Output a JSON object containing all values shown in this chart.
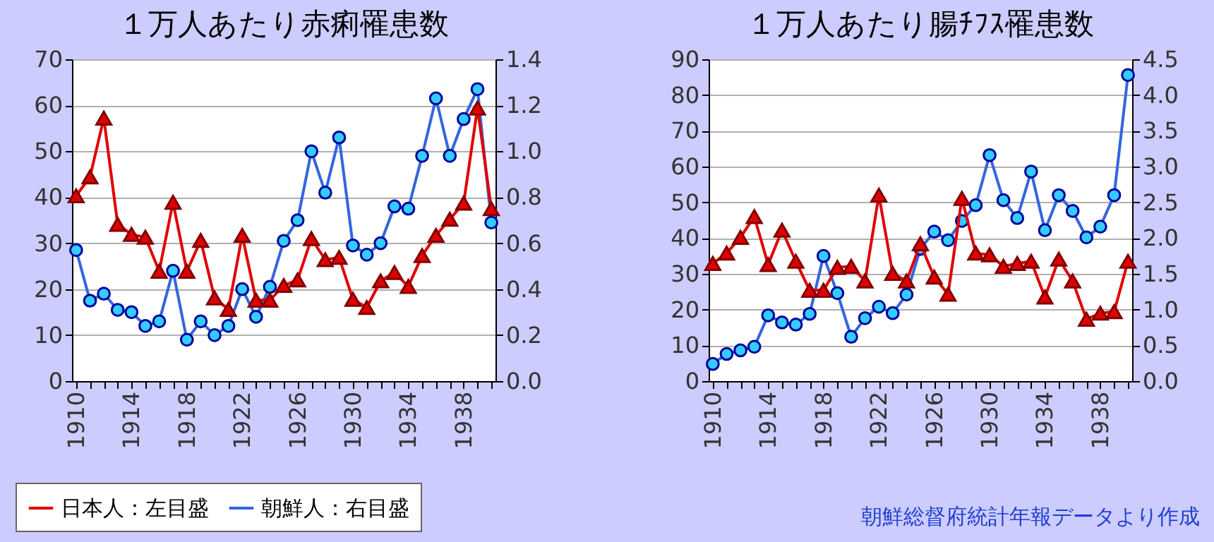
{
  "chart_data": [
    {
      "type": "line",
      "title": "１万人あたり赤痢罹患数",
      "x": [
        1910,
        1911,
        1912,
        1913,
        1914,
        1915,
        1916,
        1917,
        1918,
        1919,
        1920,
        1921,
        1922,
        1923,
        1924,
        1925,
        1926,
        1927,
        1928,
        1929,
        1930,
        1931,
        1932,
        1933,
        1934,
        1935,
        1936,
        1937,
        1938,
        1939,
        1940
      ],
      "xlim": [
        1909.7,
        1940.3
      ],
      "xticks": [
        1910,
        {
          "value": 1911,
          "label": null
        },
        {
          "value": 1912,
          "label": null
        },
        {
          "value": 1913,
          "label": null
        },
        1914,
        {
          "value": 1915,
          "label": null
        },
        {
          "value": 1916,
          "label": null
        },
        {
          "value": 1917,
          "label": null
        },
        1918,
        {
          "value": 1919,
          "label": null
        },
        {
          "value": 1920,
          "label": null
        },
        {
          "value": 1921,
          "label": null
        },
        1922,
        {
          "value": 1923,
          "label": null
        },
        {
          "value": 1924,
          "label": null
        },
        {
          "value": 1925,
          "label": null
        },
        1926,
        {
          "value": 1927,
          "label": null
        },
        {
          "value": 1928,
          "label": null
        },
        {
          "value": 1929,
          "label": null
        },
        1930,
        {
          "value": 1931,
          "label": null
        },
        {
          "value": 1932,
          "label": null
        },
        {
          "value": 1933,
          "label": null
        },
        1934,
        {
          "value": 1935,
          "label": null
        },
        {
          "value": 1936,
          "label": null
        },
        {
          "value": 1937,
          "label": null
        },
        1938,
        {
          "value": 1939,
          "label": null
        },
        {
          "value": 1940,
          "label": null
        }
      ],
      "ylim": [
        0,
        70
      ],
      "yticks": [
        0,
        10,
        20,
        30,
        40,
        50,
        60,
        70
      ],
      "y2lim": [
        0,
        1.4
      ],
      "y2ticks": [
        {
          "value": 0,
          "label": "0.0"
        },
        0.2,
        0.4,
        0.6,
        0.8,
        {
          "value": 1,
          "label": "1.0"
        },
        1.2,
        1.4
      ],
      "grid": "y",
      "legend": "bottom left",
      "series": [
        {
          "name": "日本人：左目盛",
          "color": "#e00000",
          "marker": "triangle",
          "values": [
            40.3,
            44.4,
            57.2,
            34.1,
            31.9,
            31.3,
            23.9,
            38.9,
            23.9,
            30.6,
            18.1,
            15.6,
            31.7,
            17.6,
            17.6,
            20.8,
            22.0,
            31.0,
            26.4,
            26.9,
            17.8,
            16.0,
            21.8,
            23.6,
            20.6,
            27.3,
            31.7,
            35.2,
            38.7,
            59.4,
            37.5
          ]
        },
        {
          "name": "朝鮮人：右目盛",
          "color": "#3366dd",
          "marker": "circle",
          "axis": "y2",
          "values": [
            0.57,
            0.35,
            0.38,
            0.31,
            0.3,
            0.24,
            0.26,
            0.48,
            0.18,
            0.26,
            0.2,
            0.24,
            0.4,
            0.28,
            0.41,
            0.61,
            0.7,
            1.0,
            0.82,
            1.06,
            0.59,
            0.55,
            0.6,
            0.76,
            0.75,
            0.98,
            1.23,
            0.98,
            1.14,
            1.27,
            0.69
          ]
        }
      ]
    },
    {
      "type": "line",
      "title": "１万人あたり腸ﾁﾌｽ罹患数",
      "x": [
        1910,
        1911,
        1912,
        1913,
        1914,
        1915,
        1916,
        1917,
        1918,
        1919,
        1920,
        1921,
        1922,
        1923,
        1924,
        1925,
        1926,
        1927,
        1928,
        1929,
        1930,
        1931,
        1932,
        1933,
        1934,
        1935,
        1936,
        1937,
        1938,
        1939,
        1940
      ],
      "xlim": [
        1909.7,
        1940.3
      ],
      "xticks": [
        1910,
        {
          "value": 1911,
          "label": null
        },
        {
          "value": 1912,
          "label": null
        },
        {
          "value": 1913,
          "label": null
        },
        1914,
        {
          "value": 1915,
          "label": null
        },
        {
          "value": 1916,
          "label": null
        },
        {
          "value": 1917,
          "label": null
        },
        1918,
        {
          "value": 1919,
          "label": null
        },
        {
          "value": 1920,
          "label": null
        },
        {
          "value": 1921,
          "label": null
        },
        1922,
        {
          "value": 1923,
          "label": null
        },
        {
          "value": 1924,
          "label": null
        },
        {
          "value": 1925,
          "label": null
        },
        1926,
        {
          "value": 1927,
          "label": null
        },
        {
          "value": 1928,
          "label": null
        },
        {
          "value": 1929,
          "label": null
        },
        1930,
        {
          "value": 1931,
          "label": null
        },
        {
          "value": 1932,
          "label": null
        },
        {
          "value": 1933,
          "label": null
        },
        1934,
        {
          "value": 1935,
          "label": null
        },
        {
          "value": 1936,
          "label": null
        },
        {
          "value": 1937,
          "label": null
        },
        1938,
        {
          "value": 1939,
          "label": null
        },
        {
          "value": 1940,
          "label": null
        }
      ],
      "ylim": [
        0,
        90
      ],
      "yticks": [
        0,
        10,
        20,
        30,
        40,
        50,
        60,
        70,
        80,
        90
      ],
      "y2lim": [
        0,
        4.5
      ],
      "y2ticks": [
        {
          "value": 0,
          "label": "0.0"
        },
        0.5,
        {
          "value": 1,
          "label": "1.0"
        },
        1.5,
        {
          "value": 2,
          "label": "2.0"
        },
        2.5,
        {
          "value": 3,
          "label": "3.0"
        },
        3.5,
        {
          "value": 4,
          "label": "4.0"
        },
        4.5
      ],
      "grid": "y",
      "annotations": [
        "朝鮮総督府統計年報データより作成"
      ],
      "series": [
        {
          "color": "#e00000",
          "marker": "triangle",
          "values": [
            32.9,
            35.8,
            40.2,
            46.0,
            32.6,
            42.2,
            33.5,
            25.4,
            25.4,
            31.8,
            32.1,
            28.0,
            52.0,
            30.1,
            28.0,
            38.4,
            29.1,
            24.3,
            51.1,
            35.8,
            35.3,
            32.1,
            32.9,
            33.5,
            23.5,
            34.1,
            28.0,
            17.3,
            19.0,
            19.4,
            33.5
          ]
        },
        {
          "color": "#3366dd",
          "marker": "circle",
          "axis": "y2",
          "values": [
            0.24,
            0.38,
            0.43,
            0.48,
            0.92,
            0.82,
            0.79,
            0.94,
            1.75,
            1.23,
            0.62,
            0.88,
            1.04,
            0.95,
            1.21,
            1.85,
            2.09,
            1.97,
            2.24,
            2.46,
            3.16,
            2.53,
            2.28,
            2.93,
            2.11,
            2.6,
            2.38,
            2.01,
            2.16,
            2.6,
            4.28
          ]
        }
      ]
    }
  ]
}
